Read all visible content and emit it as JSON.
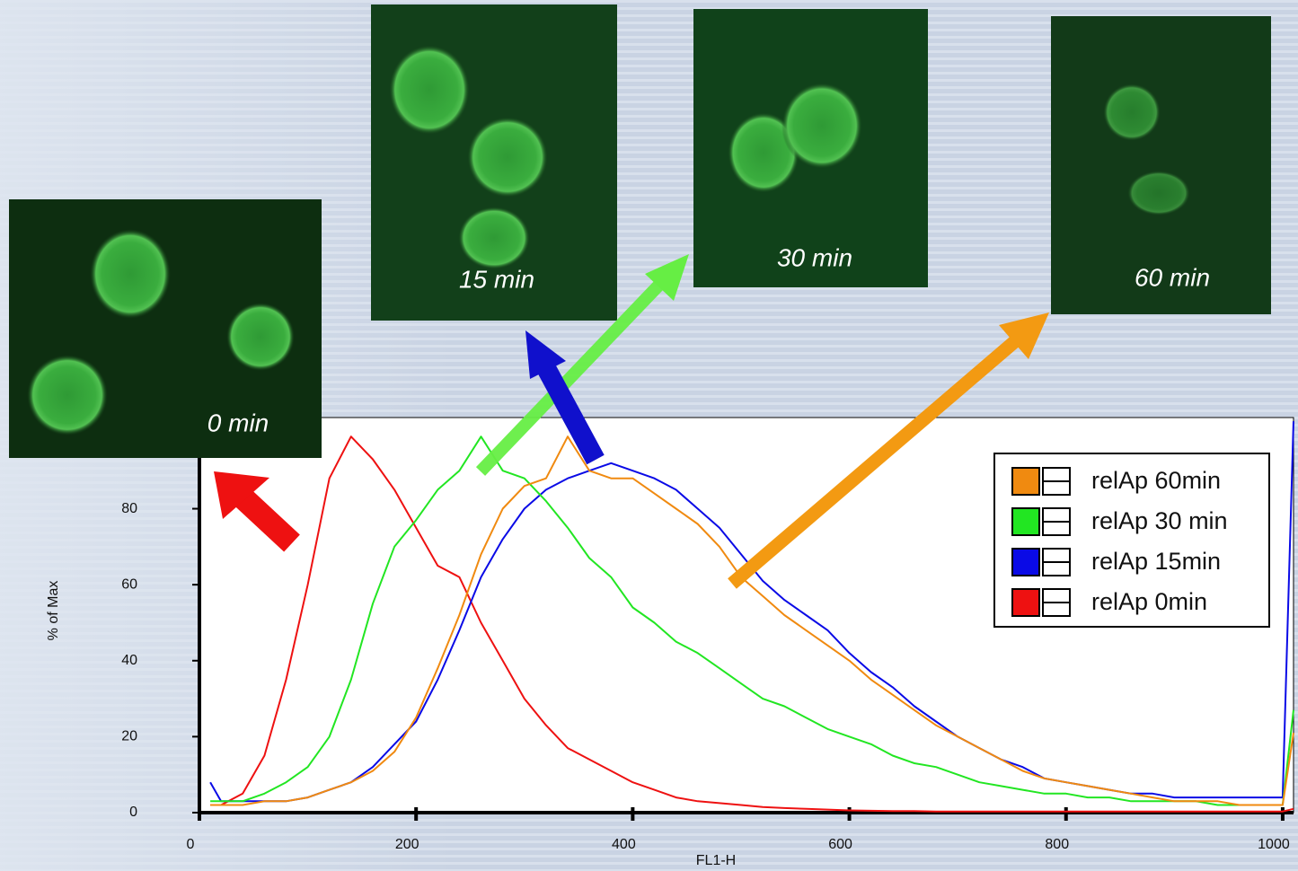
{
  "chart_data": {
    "type": "line",
    "x_label": "FL1-H",
    "y_label": "% of Max",
    "xlim": [
      0,
      1010
    ],
    "ylim": [
      0,
      104
    ],
    "xticks": [
      0,
      200,
      400,
      600,
      800,
      1000
    ],
    "yticks": [
      0,
      20,
      40,
      60,
      80
    ],
    "legend": "upper right",
    "annotations": [
      "0 min",
      "15 min",
      "30 min",
      "60 min"
    ],
    "x": [
      10,
      20,
      40,
      60,
      80,
      100,
      120,
      140,
      160,
      180,
      200,
      220,
      240,
      260,
      280,
      300,
      320,
      340,
      360,
      380,
      400,
      420,
      440,
      460,
      480,
      500,
      520,
      540,
      560,
      580,
      600,
      620,
      640,
      660,
      680,
      700,
      720,
      740,
      760,
      780,
      800,
      820,
      840,
      860,
      880,
      900,
      920,
      940,
      960,
      980,
      1000,
      1010
    ],
    "series": [
      {
        "name": "relAp 60min",
        "color": "#f08a10",
        "values": [
          2,
          2,
          2,
          3,
          3,
          4,
          6,
          8,
          11,
          16,
          25,
          38,
          52,
          68,
          80,
          86,
          88,
          99,
          90,
          88,
          88,
          84,
          80,
          76,
          70,
          62,
          57,
          52,
          48,
          44,
          40,
          35,
          31,
          27,
          23,
          20,
          17,
          14,
          11,
          9,
          8,
          7,
          6,
          5,
          4,
          3,
          3,
          3,
          2,
          2,
          2,
          21
        ]
      },
      {
        "name": "relAp 30 min",
        "color": "#22e622",
        "values": [
          3,
          3,
          3,
          5,
          8,
          12,
          20,
          35,
          55,
          70,
          77,
          85,
          90,
          99,
          90,
          88,
          82,
          75,
          67,
          62,
          54,
          50,
          45,
          42,
          38,
          34,
          30,
          28,
          25,
          22,
          20,
          18,
          15,
          13,
          12,
          10,
          8,
          7,
          6,
          5,
          5,
          4,
          4,
          3,
          3,
          3,
          3,
          2,
          2,
          2,
          2,
          27
        ]
      },
      {
        "name": "relAp 15min",
        "color": "#0a0ae6",
        "values": [
          8,
          3,
          3,
          3,
          3,
          4,
          6,
          8,
          12,
          18,
          24,
          35,
          48,
          62,
          72,
          80,
          85,
          88,
          90,
          92,
          90,
          88,
          85,
          80,
          75,
          68,
          61,
          56,
          52,
          48,
          42,
          37,
          33,
          28,
          24,
          20,
          17,
          14,
          12,
          9,
          8,
          7,
          6,
          5,
          5,
          4,
          4,
          4,
          4,
          4,
          4,
          103
        ]
      },
      {
        "name": "relAp 0min",
        "color": "#ee1111",
        "values": [
          2,
          2,
          5,
          15,
          35,
          60,
          88,
          99,
          93,
          85,
          75,
          65,
          62,
          50,
          40,
          30,
          23,
          17,
          14,
          11,
          8,
          6,
          4,
          3,
          2.5,
          2,
          1.5,
          1.2,
          1,
          0.8,
          0.6,
          0.5,
          0.4,
          0.4,
          0.3,
          0.3,
          0.3,
          0.3,
          0.3,
          0.3,
          0.3,
          0.3,
          0.3,
          0.3,
          0.3,
          0.3,
          0.3,
          0.3,
          0.3,
          0.3,
          0.3,
          1
        ]
      }
    ]
  }
}
